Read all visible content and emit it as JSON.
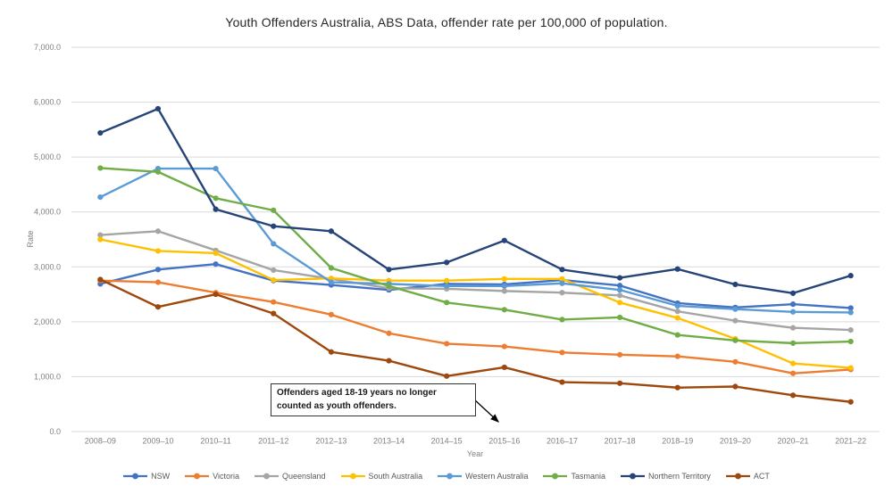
{
  "chart_data": {
    "type": "line",
    "title": "Youth Offenders Australia, ABS Data, offender rate per 100,000 of population.",
    "xlabel": "Year",
    "ylabel": "Rate",
    "ylim": [
      0,
      7000
    ],
    "y_tick_step": 1000,
    "y_tick_labels": [
      "0.0",
      "1,000.0",
      "2,000.0",
      "3,000.0",
      "4,000.0",
      "5,000.0",
      "6,000.0",
      "7,000.0"
    ],
    "grid": true,
    "legend_position": "bottom",
    "marker": "circle",
    "categories": [
      "2008–09",
      "2009–10",
      "2010–11",
      "2011–12",
      "2012–13",
      "2013–14",
      "2014–15",
      "2015–16",
      "2016–17",
      "2017–18",
      "2018–19",
      "2019–20",
      "2020–21",
      "2021–22"
    ],
    "series": [
      {
        "id": "nsw",
        "name": "NSW",
        "color": "#4472C4",
        "values": [
          2690,
          2950,
          3050,
          2750,
          2670,
          2580,
          2690,
          2680,
          2760,
          2660,
          2340,
          2260,
          2320,
          2250
        ]
      },
      {
        "id": "victoria",
        "name": "Victoria",
        "color": "#ED7D31",
        "values": [
          2750,
          2720,
          2530,
          2360,
          2130,
          1790,
          1600,
          1550,
          1440,
          1400,
          1370,
          1270,
          1060,
          1130
        ]
      },
      {
        "id": "queensland",
        "name": "Queensland",
        "color": "#A5A5A5",
        "values": [
          3580,
          3650,
          3300,
          2940,
          2780,
          2610,
          2600,
          2560,
          2530,
          2480,
          2190,
          2020,
          1890,
          1850
        ]
      },
      {
        "id": "south-australia",
        "name": "South Australia",
        "color": "#FFC000",
        "values": [
          3500,
          3290,
          3250,
          2760,
          2790,
          2750,
          2750,
          2780,
          2780,
          2350,
          2070,
          1690,
          1240,
          1160
        ]
      },
      {
        "id": "western-australia",
        "name": "Western Australia",
        "color": "#5B9BD5",
        "values": [
          4270,
          4790,
          4790,
          3420,
          2720,
          2690,
          2650,
          2650,
          2700,
          2580,
          2290,
          2230,
          2180,
          2170
        ]
      },
      {
        "id": "tasmania",
        "name": "Tasmania",
        "color": "#70AD47",
        "values": [
          4800,
          4730,
          4250,
          4030,
          2980,
          2650,
          2350,
          2220,
          2040,
          2080,
          1760,
          1660,
          1610,
          1640
        ]
      },
      {
        "id": "northern-territory",
        "name": "Northern Territory",
        "color": "#264478",
        "values": [
          5440,
          5880,
          4050,
          3740,
          3650,
          2950,
          3080,
          3480,
          2950,
          2800,
          2960,
          2680,
          2520,
          2840
        ]
      },
      {
        "id": "act",
        "name": "ACT",
        "color": "#9E480E",
        "values": [
          2770,
          2270,
          2500,
          2150,
          1450,
          1290,
          1010,
          1170,
          900,
          880,
          800,
          820,
          660,
          540
        ]
      }
    ],
    "annotation": {
      "text": "Offenders aged 18-19 years no longer counted as youth offenders.",
      "arrow_points_at": "2015–16"
    },
    "colors": {
      "background": "#FFFFFF",
      "grid": "#D9D9D9",
      "axis_text": "#808080",
      "legend_text": "#595959",
      "title_text": "#262626",
      "annotation_border": "#333333",
      "annotation_arrow": "#000000"
    }
  }
}
